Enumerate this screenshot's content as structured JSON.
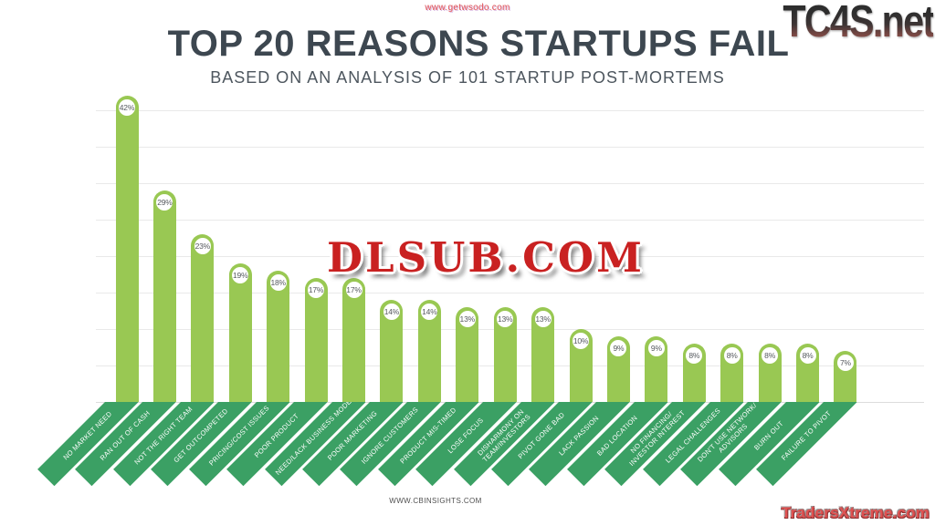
{
  "watermarks": {
    "top_center": "www.getwsodo.com",
    "top_right": "TC4S.net",
    "center": "DLSUB.COM",
    "bottom_right": "TradersXtreme.com"
  },
  "header": {
    "title": "TOP 20 REASONS STARTUPS FAIL",
    "subtitle": "BASED ON AN ANALYSIS OF 101 STARTUP POST-MORTEMS"
  },
  "footer": {
    "source": "WWW.CBINSIGHTS.COM"
  },
  "chart_data": {
    "type": "bar",
    "title": "TOP 20 REASONS STARTUPS FAIL",
    "subtitle": "BASED ON AN ANALYSIS OF 101 STARTUP POST-MORTEMS",
    "unit": "%",
    "ylim": [
      0,
      45
    ],
    "gridline_step": 5,
    "grid": true,
    "legend": false,
    "source": "WWW.CBINSIGHTS.COM",
    "categories": [
      "NO MARKET NEED",
      "RAN OUT OF CASH",
      "NOT THE RIGHT TEAM",
      "GET OUTCOMPETED",
      "PRICING/COST ISSUES",
      "POOR PRODUCT",
      "NEED/LACK BUSINESS MODEL",
      "POOR MARKETING",
      "IGNORE CUSTOMERS",
      "PRODUCT MIS-TIMED",
      "LOSE FOCUS",
      "DISHARMONY ON TEAM/INVESTORS",
      "PIVOT GONE BAD",
      "LACK PASSION",
      "BAD LOCATION",
      "NO FINANCING/INVESTOR INTEREST",
      "LEGAL CHALLENGES",
      "DON'T USE NETWORK/ADVISORS",
      "BURN OUT",
      "FAILURE TO PIVOT"
    ],
    "label_lines": [
      [
        "NO MARKET NEED"
      ],
      [
        "RAN OUT OF CASH"
      ],
      [
        "NOT THE RIGHT TEAM"
      ],
      [
        "GET OUTCOMPETED"
      ],
      [
        "PRICING/COST ISSUES"
      ],
      [
        "POOR PRODUCT"
      ],
      [
        "NEED/LACK BUSINESS MODEL"
      ],
      [
        "POOR MARKETING"
      ],
      [
        "IGNORE CUSTOMERS"
      ],
      [
        "PRODUCT MIS-TIMED"
      ],
      [
        "LOSE FOCUS"
      ],
      [
        "DISHARMONY ON",
        "TEAM/INVESTORS"
      ],
      [
        "PIVOT GONE BAD"
      ],
      [
        "LACK PASSION"
      ],
      [
        "BAD LOCATION"
      ],
      [
        "NO FINANCING/",
        "INVESTOR INTEREST"
      ],
      [
        "LEGAL CHALLENGES"
      ],
      [
        "DON'T USE NETWORK/",
        "ADVISORS"
      ],
      [
        "BURN OUT"
      ],
      [
        "FAILURE TO PIVOT"
      ]
    ],
    "values": [
      42,
      29,
      23,
      19,
      18,
      17,
      17,
      14,
      14,
      13,
      13,
      13,
      10,
      9,
      9,
      8,
      8,
      8,
      8,
      7
    ],
    "value_labels": [
      "42%",
      "29%",
      "23%",
      "19%",
      "18%",
      "17%",
      "17%",
      "14%",
      "14%",
      "13%",
      "13%",
      "13%",
      "10%",
      "9%",
      "9%",
      "8%",
      "8%",
      "8%",
      "8%",
      "7%"
    ],
    "colors": {
      "bar": "#99c853",
      "ribbon": "#3ba064",
      "badge_fill": "#ffffff",
      "badge_ring": "#99c853",
      "value_text": "#565a5f",
      "gridline": "#e9e9e9",
      "title_text": "#3d4750",
      "subtitle_text": "#4d565e",
      "watermark_red": "#c92121"
    }
  }
}
